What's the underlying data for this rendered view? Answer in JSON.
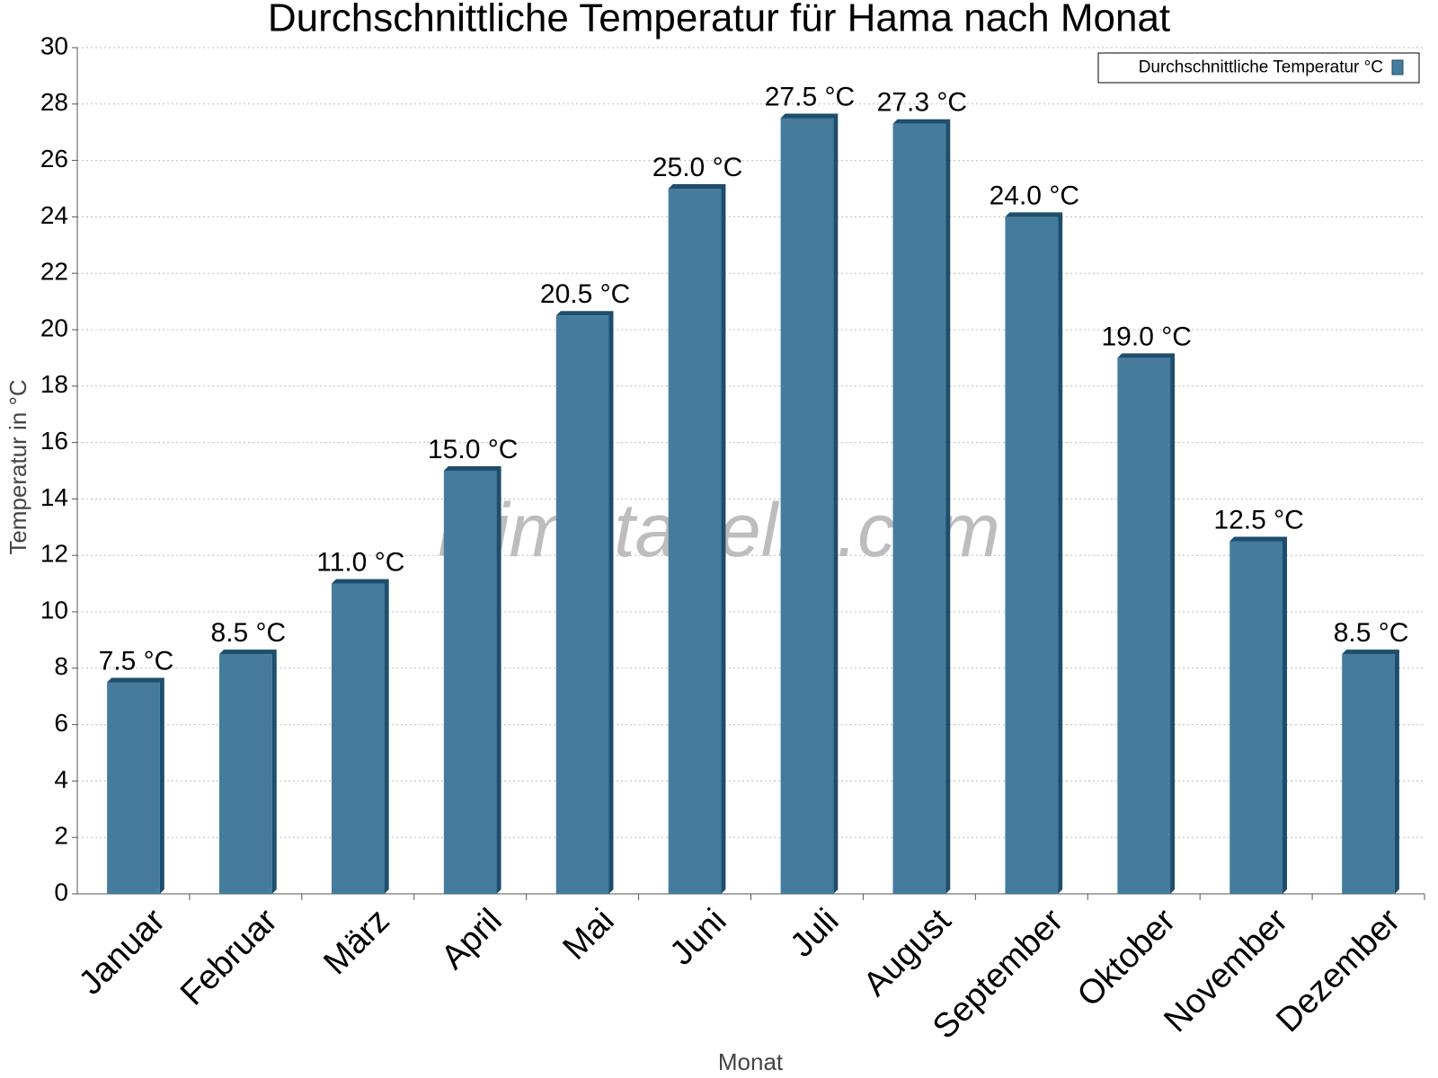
{
  "chart_data": {
    "type": "bar",
    "title": "Durchschnittliche Temperatur für Hama nach Monat",
    "watermark": "klimatabelle.com",
    "x_label": "Monat",
    "y_label": "Temperatur in °C",
    "categories": [
      "Januar",
      "Februar",
      "März",
      "April",
      "Mai",
      "Juni",
      "Juli",
      "August",
      "September",
      "Oktober",
      "November",
      "Dezember"
    ],
    "series": [
      {
        "name": "Durchschnittliche Temperatur °C",
        "color": "#457b9d",
        "values": [
          7.5,
          8.5,
          11.0,
          15.0,
          20.5,
          25.0,
          27.5,
          27.3,
          24.0,
          19.0,
          12.5,
          8.5
        ],
        "value_labels": [
          "7.5 °C",
          "8.5 °C",
          "11.0 °C",
          "15.0 °C",
          "20.5 °C",
          "25.0 °C",
          "27.5 °C",
          "27.3 °C",
          "24.0 °C",
          "19.0 °C",
          "12.5 °C",
          "8.5 °C"
        ]
      }
    ],
    "ylim": [
      0,
      30
    ],
    "yticks": [
      0,
      2,
      4,
      6,
      8,
      10,
      12,
      14,
      16,
      18,
      20,
      22,
      24,
      26,
      28,
      30
    ],
    "grid": true,
    "legend": "top-right"
  }
}
